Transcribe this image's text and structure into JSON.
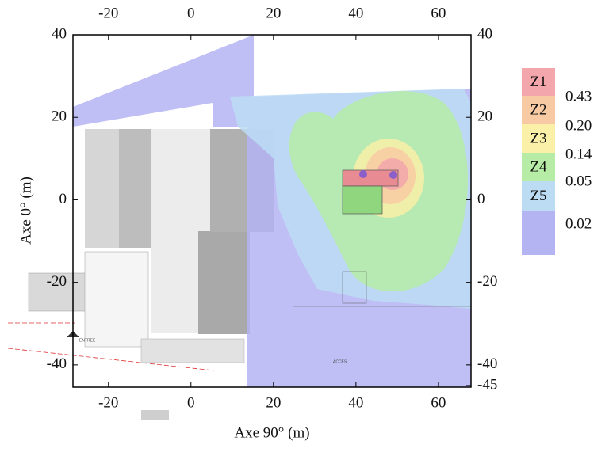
{
  "chart_data": {
    "type": "contour",
    "xlabel": "Axe 90° (m)",
    "ylabel": "Axe 0° (m)",
    "xlim": [
      -28.6,
      67.9
    ],
    "ylim": [
      -45.4,
      40
    ],
    "y2lim": [
      -45.4,
      40
    ],
    "xticks": [
      -20,
      0,
      20,
      40,
      60
    ],
    "yticks": [
      40,
      20,
      0,
      -20,
      -40
    ],
    "y2ticks": [
      40,
      20,
      0,
      -20,
      -40,
      -45
    ],
    "levels": [
      {
        "name": "Z1",
        "color": "#f3a6ab"
      },
      {
        "name": "Z2",
        "color": "#f8caa3"
      },
      {
        "name": "Z3",
        "color": "#faf0a8"
      },
      {
        "name": "Z4",
        "color": "#b6eca6"
      },
      {
        "name": "Z5",
        "color": "#bcdcf4"
      },
      {
        "name": null,
        "color": "#b4b4f3"
      }
    ],
    "thresholds": [
      0.43,
      {
        "value": 0.2,
        "label": "0.20"
      },
      0.14,
      0.05,
      0.02
    ]
  }
}
